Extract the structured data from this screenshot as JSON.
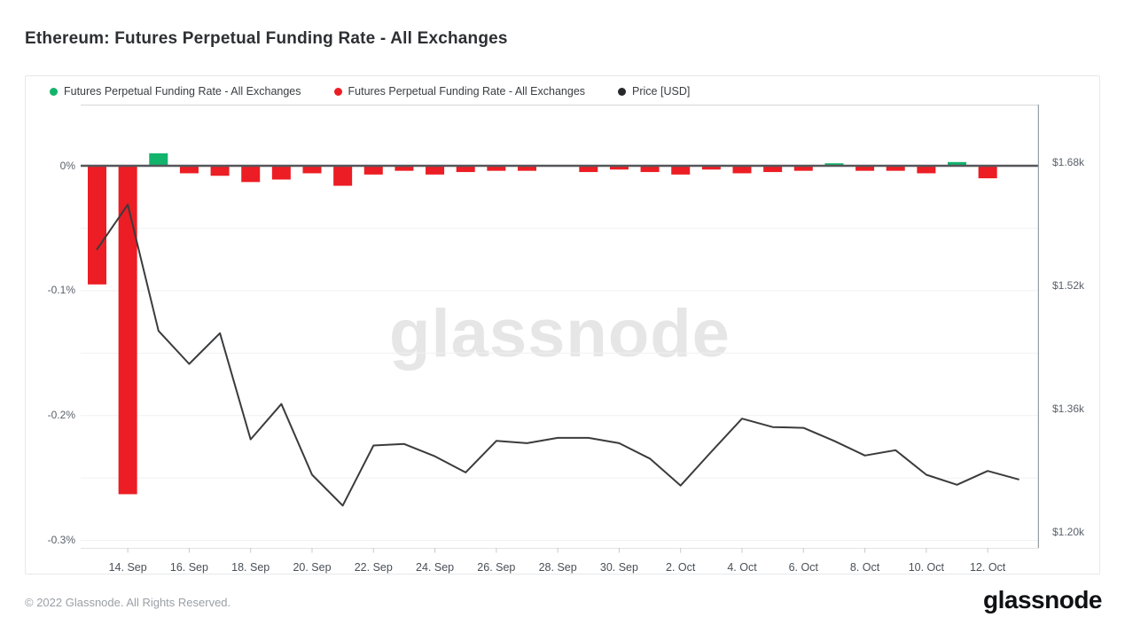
{
  "header": {
    "title": "Ethereum: Futures Perpetual Funding Rate - All Exchanges"
  },
  "legend": {
    "items": [
      {
        "label": "Futures Perpetual Funding Rate - All Exchanges",
        "color": "#12b36b"
      },
      {
        "label": "Futures Perpetual Funding Rate - All Exchanges",
        "color": "#ec1d24"
      },
      {
        "label": "Price [USD]",
        "color": "#26282b"
      }
    ]
  },
  "watermark": {
    "text": "glassnode"
  },
  "footer": {
    "copyright": "© 2022 Glassnode. All Rights Reserved.",
    "logo_text": "glassnode"
  },
  "chart_data": {
    "type": "combo",
    "title": "Ethereum: Futures Perpetual Funding Rate - All Exchanges",
    "x": [
      "13. Sep",
      "14. Sep",
      "15. Sep",
      "16. Sep",
      "17. Sep",
      "18. Sep",
      "19. Sep",
      "20. Sep",
      "21. Sep",
      "22. Sep",
      "23. Sep",
      "24. Sep",
      "25. Sep",
      "26. Sep",
      "27. Sep",
      "28. Sep",
      "29. Sep",
      "30. Sep",
      "1. Oct",
      "2. Oct",
      "3. Oct",
      "4. Oct",
      "5. Oct",
      "6. Oct",
      "7. Oct",
      "8. Oct",
      "9. Oct",
      "10. Oct",
      "11. Oct",
      "12. Oct",
      "13. Oct"
    ],
    "series": [
      {
        "name": "Futures Perpetual Funding Rate - All Exchanges",
        "type": "bar",
        "unit": "%",
        "color_positive": "#12b36b",
        "color_negative": "#ec1d24",
        "values": [
          -0.095,
          -0.263,
          0.01,
          -0.006,
          -0.008,
          -0.013,
          -0.011,
          -0.006,
          -0.016,
          -0.007,
          -0.004,
          -0.007,
          -0.005,
          -0.004,
          -0.004,
          0,
          -0.005,
          -0.003,
          -0.005,
          -0.007,
          -0.003,
          -0.006,
          -0.005,
          -0.004,
          0.002,
          -0.004,
          -0.004,
          -0.006,
          0.003,
          -0.01,
          null
        ]
      },
      {
        "name": "Price [USD]",
        "type": "line",
        "unit": "USD",
        "color": "#3a3b3d",
        "values": [
          1568,
          1626,
          1462,
          1419,
          1459,
          1321,
          1367,
          1275,
          1235,
          1313,
          1315,
          1299,
          1278,
          1319,
          1316,
          1323,
          1323,
          1316,
          1296,
          1261,
          1305,
          1348,
          1337,
          1336,
          1319,
          1300,
          1307,
          1275,
          1262,
          1280,
          1269
        ]
      }
    ],
    "x_axis": {
      "tick_indices": [
        1,
        3,
        5,
        7,
        9,
        11,
        13,
        15,
        17,
        19,
        21,
        23,
        25,
        27,
        29
      ],
      "tick_labels": [
        "14. Sep",
        "16. Sep",
        "18. Sep",
        "20. Sep",
        "22. Sep",
        "24. Sep",
        "26. Sep",
        "28. Sep",
        "30. Sep",
        "2. Oct",
        "4. Oct",
        "6. Oct",
        "8. Oct",
        "10. Oct",
        "12. Oct"
      ]
    },
    "y_left": {
      "unit": "%",
      "range": [
        -0.306,
        0.049
      ],
      "ticks": [
        {
          "v": 0,
          "label": "0%"
        },
        {
          "v": -0.1,
          "label": "-0.1%"
        },
        {
          "v": -0.2,
          "label": "-0.2%"
        },
        {
          "v": -0.3,
          "label": "-0.3%"
        }
      ],
      "minor_gridlines": [
        -0.05,
        -0.15,
        -0.25
      ]
    },
    "y_right": {
      "unit": "USD",
      "range": [
        1180,
        1756
      ],
      "ticks": [
        {
          "v": 1680,
          "label": "$1.68k"
        },
        {
          "v": 1520,
          "label": "$1.52k"
        },
        {
          "v": 1360,
          "label": "$1.36k"
        },
        {
          "v": 1200,
          "label": "$1.20k"
        }
      ]
    },
    "grid": "horizontal-only",
    "legend_position": "top-left",
    "zero_line_color": "#55565a"
  }
}
